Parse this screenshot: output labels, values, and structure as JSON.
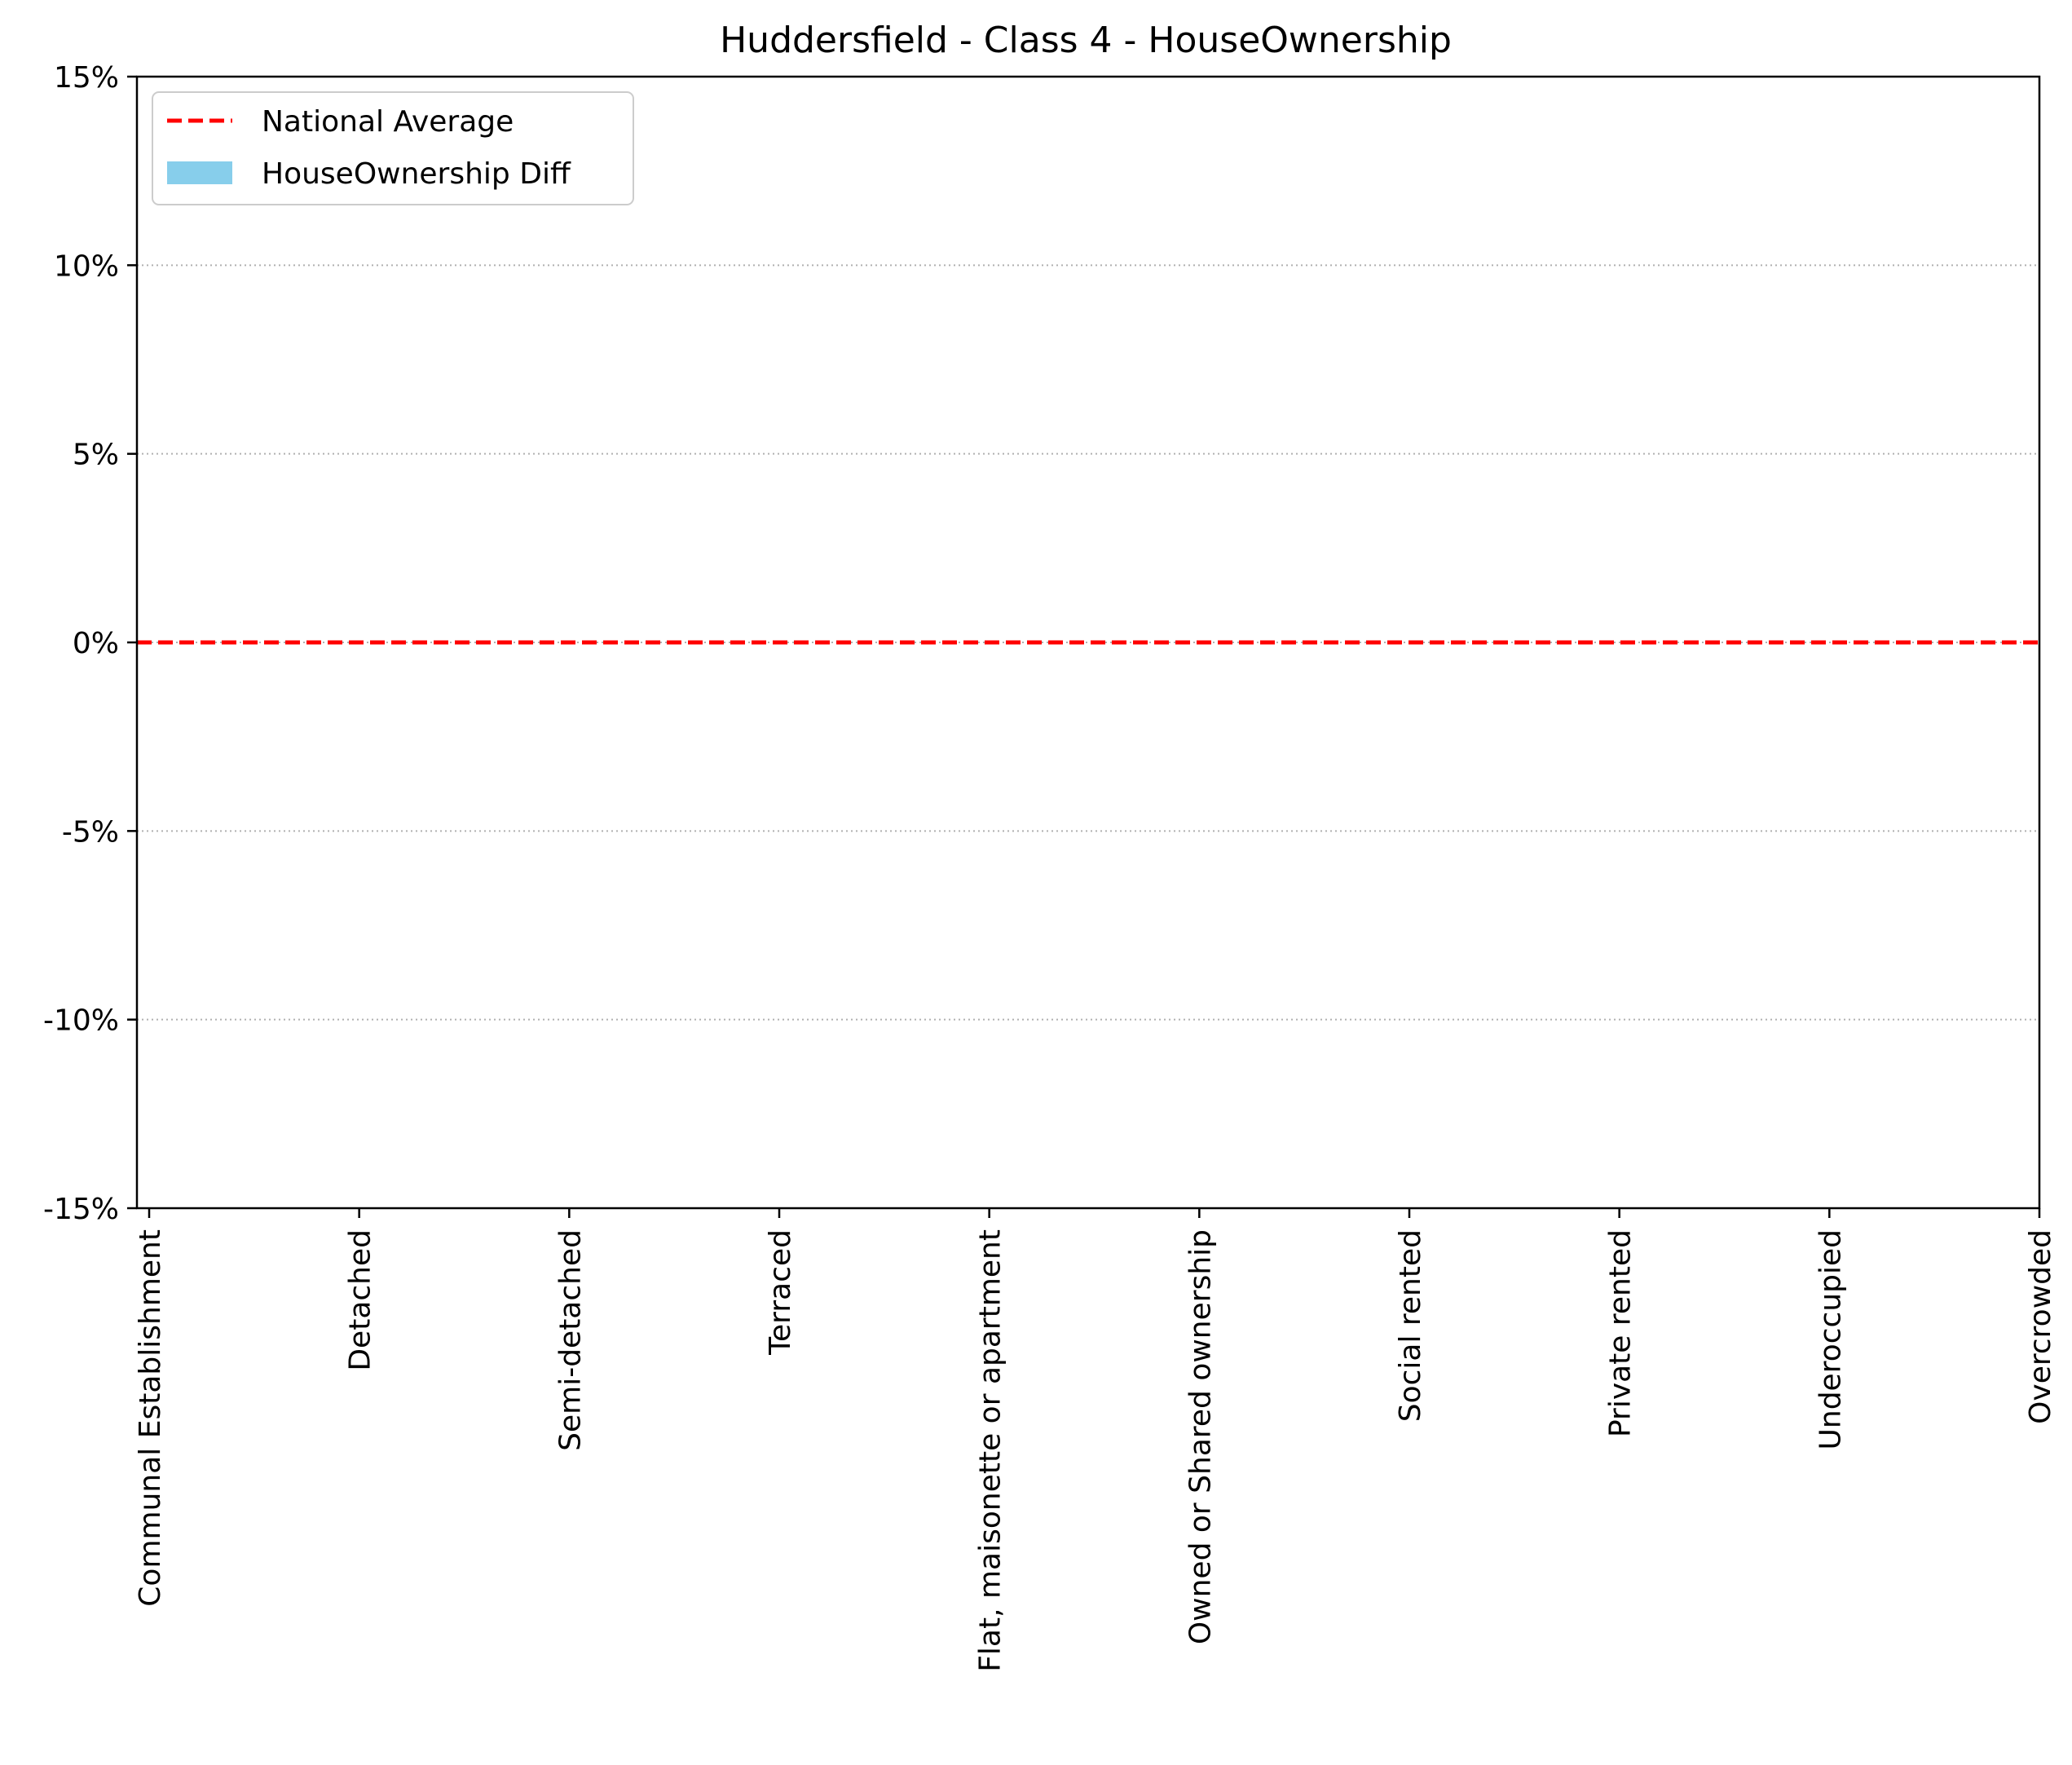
{
  "chart_data": {
    "type": "bar",
    "title": "Huddersfield - Class 4 - HouseOwnership",
    "xlabel": "",
    "ylabel": "",
    "categories": [
      "Communal Establishment",
      "Detached",
      "Semi-detached",
      "Terraced",
      "Flat, maisonette or apartment",
      "Owned or Shared ownership",
      "Social rented",
      "Private rented",
      "Underoccupied",
      "Overcrowded"
    ],
    "series": [
      {
        "name": "HouseOwnership Diff",
        "color": "#87ceeb",
        "values": [
          0,
          0,
          0,
          0,
          0,
          0,
          0,
          0,
          0,
          0
        ]
      }
    ],
    "reference_line": {
      "name": "National Average",
      "value": 0,
      "color": "#ff0000",
      "style": "dashed"
    },
    "ylim": [
      -15,
      15
    ],
    "yticks": [
      -15,
      -10,
      -5,
      0,
      5,
      10,
      15
    ],
    "ytick_labels": [
      "-15%",
      "-10%",
      "-5%",
      "0%",
      "5%",
      "10%",
      "15%"
    ],
    "grid": "horizontal dotted",
    "legend_position": "upper-left",
    "legend": [
      {
        "label": "National Average",
        "kind": "dashed-line",
        "color": "#ff0000"
      },
      {
        "label": "HouseOwnership Diff",
        "kind": "patch",
        "color": "#87ceeb"
      }
    ]
  }
}
